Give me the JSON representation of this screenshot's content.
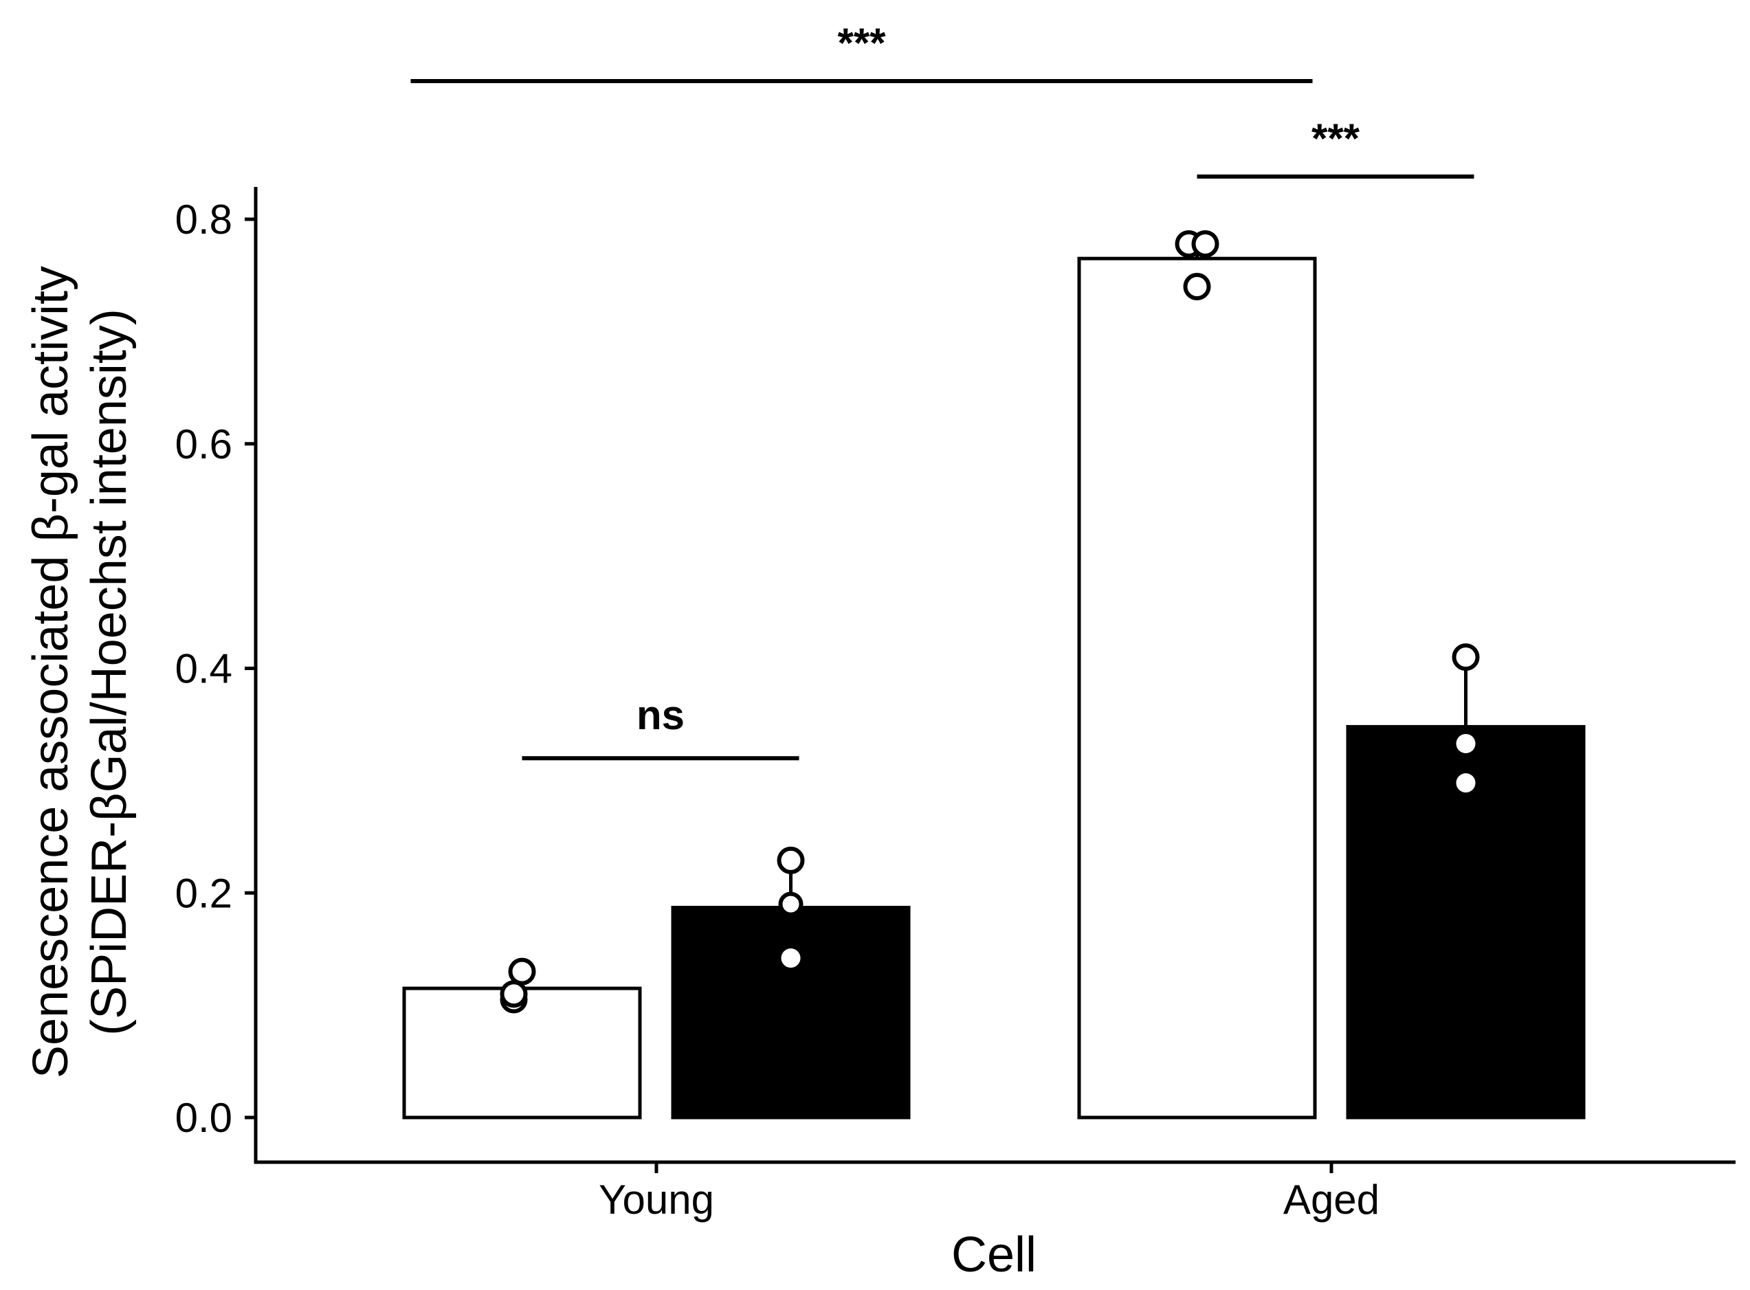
{
  "chart_data": {
    "type": "bar",
    "title": "",
    "xlabel": "Cell",
    "ylabel_lines": [
      "Senescence associated β-gal activity",
      "(SPiDER-βGal/Hoechst intensity)"
    ],
    "categories": [
      "Young",
      "Aged"
    ],
    "ylim": [
      0,
      0.86
    ],
    "yticks": [
      0.0,
      0.2,
      0.4,
      0.6,
      0.8
    ],
    "ytick_labels": [
      "0.0",
      "0.2",
      "0.4",
      "0.6",
      "0.8"
    ],
    "series": [
      {
        "name": "open",
        "fill": "#ffffff",
        "values": [
          0.115,
          0.765
        ],
        "error_upper": [
          0.13,
          0.775
        ],
        "points": [
          [
            0.105,
            0.11,
            0.13
          ],
          [
            0.74,
            0.778,
            0.778
          ]
        ]
      },
      {
        "name": "filled",
        "fill": "#000000",
        "values": [
          0.187,
          0.348
        ],
        "error_upper": [
          0.229,
          0.405
        ],
        "points": [
          [
            0.142,
            0.19,
            0.229
          ],
          [
            0.298,
            0.333,
            0.41
          ]
        ]
      }
    ],
    "significance": [
      {
        "label": "ns",
        "from": [
          0,
          0
        ],
        "to": [
          0,
          1
        ],
        "y": 0.32
      },
      {
        "label": "***",
        "from": [
          1,
          0
        ],
        "to": [
          1,
          1
        ],
        "y": 0.838
      },
      {
        "label": "***",
        "from": [
          0,
          0
        ],
        "to": [
          1,
          0
        ],
        "y": 0.923
      }
    ]
  }
}
